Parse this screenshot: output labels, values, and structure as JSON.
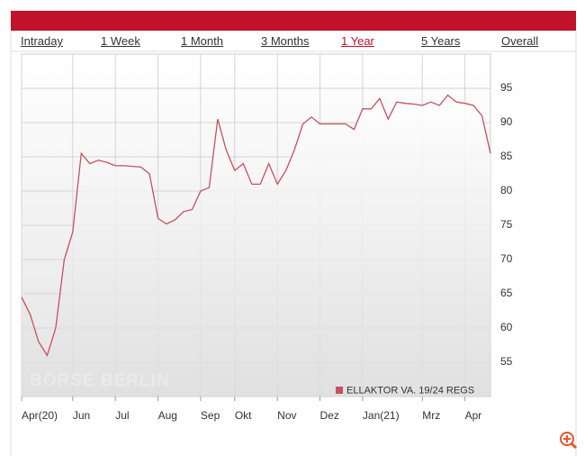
{
  "tabs": [
    "Intraday",
    "1 Week",
    "1 Month",
    "3 Months",
    "1 Year",
    "5 Years",
    "Overall"
  ],
  "chart_data": {
    "type": "line",
    "watermark": "BÖRSE BERLIN",
    "x": [
      "Apr(20)",
      null,
      null,
      null,
      null,
      null,
      "Jun",
      null,
      null,
      null,
      null,
      "Jul",
      null,
      null,
      null,
      null,
      "Aug",
      null,
      null,
      null,
      null,
      "Sep",
      null,
      null,
      null,
      "Okt",
      null,
      null,
      null,
      null,
      "Nov",
      null,
      null,
      null,
      null,
      "Dez",
      null,
      null,
      null,
      null,
      "Jan(21)",
      null,
      null,
      null,
      null,
      null,
      null,
      "Mrz",
      null,
      null,
      null,
      null,
      "Apr",
      null,
      null,
      null
    ],
    "series": [
      {
        "name": "ELLAKTOR VA. 19/24 REGS",
        "color": "#c9505e",
        "values": [
          64.5,
          62,
          58,
          56,
          60,
          70,
          74,
          85.5,
          84,
          84.5,
          84.2,
          83.7,
          83.7,
          83.6,
          83.5,
          82.5,
          76,
          75.2,
          75.8,
          77,
          77.3,
          80,
          80.5,
          90.5,
          86,
          83,
          84,
          81,
          81,
          84,
          81,
          83,
          86,
          89.8,
          90.8,
          89.8,
          89.8,
          89.8,
          89.8,
          89,
          92,
          92,
          93.5,
          90.5,
          93,
          92.8,
          92.7,
          92.5,
          93,
          92.5,
          94,
          93,
          92.8,
          92.5,
          91,
          85.5
        ]
      }
    ],
    "ylim": [
      50,
      100
    ],
    "yticks": [
      55,
      60,
      65,
      70,
      75,
      80,
      85,
      90,
      95
    ],
    "grid": true
  }
}
